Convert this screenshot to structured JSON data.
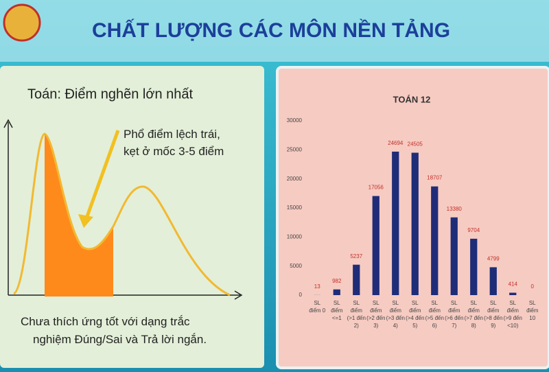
{
  "slide": {
    "title": "CHẤT LƯỢNG CÁC MÔN NỀN TẢNG",
    "left_panel": {
      "heading": "Toán: Điểm nghẽn lớn nhất",
      "annotation": [
        "Phổ điểm lệch trái,",
        "kẹt ở mốc 3-5 điểm"
      ],
      "caption": [
        "Chưa thích ứng tốt với dạng trắc",
        "nghiệm Đúng/Sai và Trả lời ngắn."
      ]
    }
  },
  "chart_data": {
    "type": "bar",
    "title": "TOÁN 12",
    "categories": [
      [
        "SL",
        "điểm 0"
      ],
      [
        "SL",
        "điểm",
        "<=1"
      ],
      [
        "SL",
        "điểm",
        "(>1 đến",
        "2)"
      ],
      [
        "SL",
        "điểm",
        "(>2 đến",
        "3)"
      ],
      [
        "SL",
        "điểm",
        "(>3 đến",
        "4)"
      ],
      [
        "SL",
        "điểm",
        "(>4 đến",
        "5)"
      ],
      [
        "SL",
        "điểm",
        "(>5 đến",
        "6)"
      ],
      [
        "SL",
        "điểm",
        "(>6 đến",
        "7)"
      ],
      [
        "SL",
        "điểm",
        "(>7 đến",
        "8)"
      ],
      [
        "SL",
        "điểm",
        "(>8 đến",
        "9)"
      ],
      [
        "SL",
        "điểm",
        "(>9 đến",
        "<10)"
      ],
      [
        "SL",
        "điểm",
        "10"
      ]
    ],
    "values": [
      13,
      982,
      5237,
      17056,
      24694,
      24505,
      18707,
      13380,
      9704,
      4799,
      414,
      0
    ],
    "color": "#1f2d78",
    "label_color": "#c0302a",
    "ylim": [
      0,
      30000
    ],
    "yticks": [
      0,
      5000,
      10000,
      15000,
      20000,
      25000,
      30000
    ],
    "grid": false
  }
}
